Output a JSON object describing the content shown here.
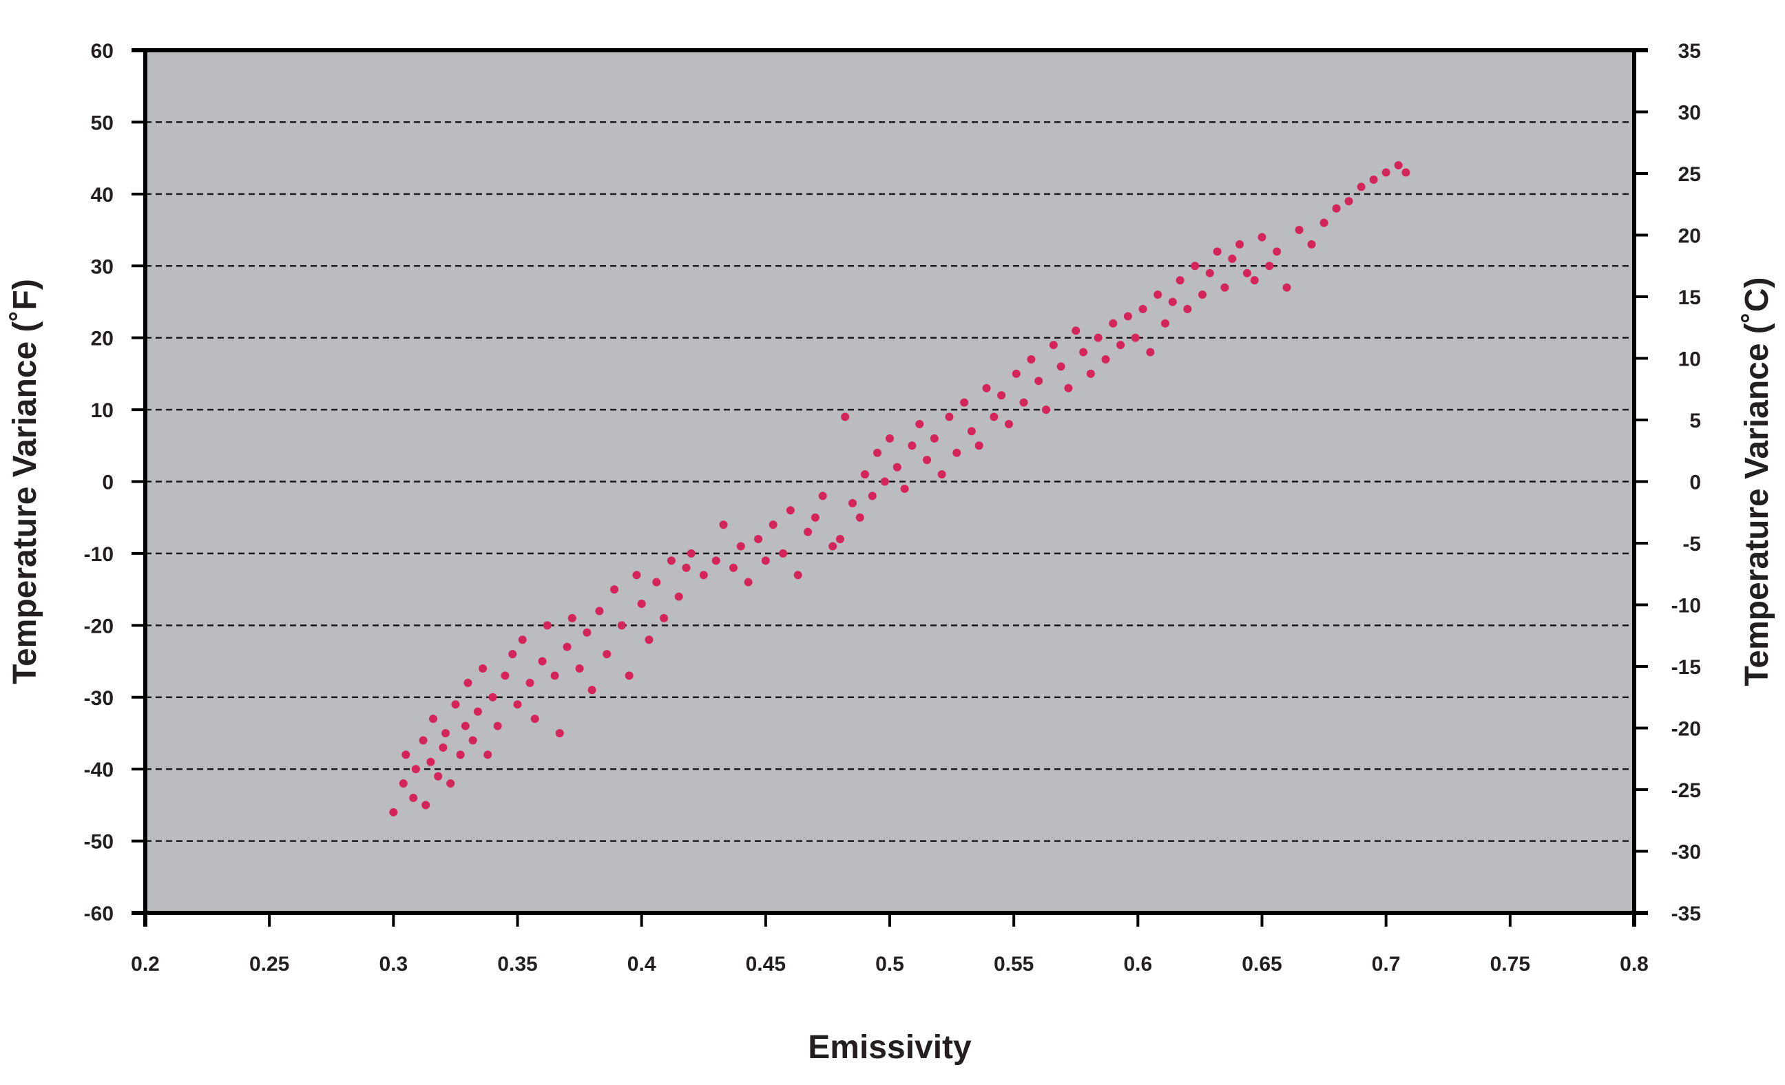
{
  "chart_data": {
    "type": "scatter",
    "title": "",
    "xlabel": "Emissivity",
    "ylabel": "Temperature Variance (˚F)",
    "ylabel_right": "Temperature Variance (˚C)",
    "xlim": [
      0.2,
      0.8
    ],
    "ylim": [
      -60,
      60
    ],
    "ylim_right": [
      -35,
      35
    ],
    "x_ticks": [
      "0.2",
      "0.25",
      "0.3",
      "0.35",
      "0.4",
      "0.45",
      "0.5",
      "0.55",
      "0.6",
      "0.65",
      "0.7",
      "0.75",
      "0.8"
    ],
    "y_ticks": [
      "60",
      "50",
      "40",
      "30",
      "20",
      "10",
      "0",
      "-10",
      "-20",
      "-30",
      "-40",
      "-50",
      "-60"
    ],
    "y_ticks_right": [
      "35",
      "30",
      "25",
      "20",
      "15",
      "10",
      "5",
      "0",
      "-5",
      "-10",
      "-15",
      "-20",
      "-25",
      "-30",
      "-35"
    ],
    "grid": "horizontal dashed",
    "colors": {
      "plot_background": "#bbbcc0",
      "points": "#d4245a",
      "axes": "#000000",
      "text": "#231f20"
    },
    "series": [
      {
        "x": [
          0.3,
          0.304,
          0.305,
          0.308,
          0.309,
          0.312,
          0.313,
          0.315,
          0.316,
          0.318,
          0.32,
          0.321,
          0.323,
          0.325,
          0.327,
          0.329,
          0.33,
          0.332,
          0.334,
          0.336,
          0.338,
          0.34,
          0.342,
          0.345,
          0.348,
          0.35,
          0.352,
          0.355,
          0.357,
          0.36,
          0.362,
          0.365,
          0.367,
          0.37,
          0.372,
          0.375,
          0.378,
          0.38,
          0.383,
          0.386,
          0.389,
          0.392,
          0.395,
          0.398,
          0.4,
          0.403,
          0.406,
          0.409,
          0.412,
          0.415,
          0.418,
          0.42,
          0.425,
          0.43,
          0.433,
          0.437,
          0.44,
          0.443,
          0.447,
          0.45,
          0.453,
          0.457,
          0.46,
          0.463,
          0.467,
          0.47,
          0.473,
          0.477,
          0.48,
          0.482,
          0.485,
          0.488,
          0.49,
          0.493,
          0.495,
          0.498,
          0.5,
          0.503,
          0.506,
          0.509,
          0.512,
          0.515,
          0.518,
          0.521,
          0.524,
          0.527,
          0.53,
          0.533,
          0.536,
          0.539,
          0.542,
          0.545,
          0.548,
          0.551,
          0.554,
          0.557,
          0.56,
          0.563,
          0.566,
          0.569,
          0.572,
          0.575,
          0.578,
          0.581,
          0.584,
          0.587,
          0.59,
          0.593,
          0.596,
          0.599,
          0.602,
          0.605,
          0.608,
          0.611,
          0.614,
          0.617,
          0.62,
          0.623,
          0.626,
          0.629,
          0.632,
          0.635,
          0.638,
          0.641,
          0.644,
          0.647,
          0.65,
          0.653,
          0.656,
          0.66,
          0.665,
          0.67,
          0.675,
          0.68,
          0.685,
          0.69,
          0.695,
          0.7,
          0.705,
          0.708
        ],
        "y": [
          -46,
          -42,
          -38,
          -44,
          -40,
          -36,
          -45,
          -39,
          -33,
          -41,
          -37,
          -35,
          -42,
          -31,
          -38,
          -34,
          -28,
          -36,
          -32,
          -26,
          -38,
          -30,
          -34,
          -27,
          -24,
          -31,
          -22,
          -28,
          -33,
          -25,
          -20,
          -27,
          -35,
          -23,
          -19,
          -26,
          -21,
          -29,
          -18,
          -24,
          -15,
          -20,
          -27,
          -13,
          -17,
          -22,
          -14,
          -19,
          -11,
          -16,
          -12,
          -10,
          -13,
          -11,
          -6,
          -12,
          -9,
          -14,
          -8,
          -11,
          -6,
          -10,
          -4,
          -13,
          -7,
          -5,
          -2,
          -9,
          -8,
          9,
          -3,
          -5,
          1,
          -2,
          4,
          0,
          6,
          2,
          -1,
          5,
          8,
          3,
          6,
          1,
          9,
          4,
          11,
          7,
          5,
          13,
          9,
          12,
          8,
          15,
          11,
          17,
          14,
          10,
          19,
          16,
          13,
          21,
          18,
          15,
          20,
          17,
          22,
          19,
          23,
          20,
          24,
          18,
          26,
          22,
          25,
          28,
          24,
          30,
          26,
          29,
          32,
          27,
          31,
          33,
          29,
          28,
          34,
          30,
          32,
          27,
          35,
          33,
          36,
          38,
          39,
          41,
          42,
          43,
          44,
          43
        ]
      }
    ]
  }
}
